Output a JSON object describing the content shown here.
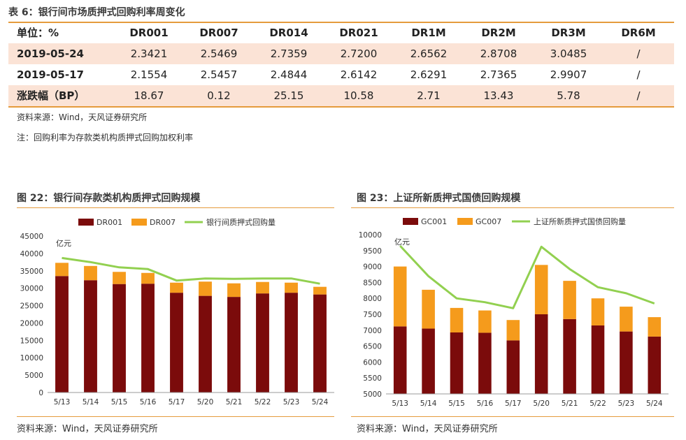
{
  "table": {
    "caption": "表 6：银行间市场质押式回购利率周变化",
    "headers": [
      "单位：%",
      "DR001",
      "DR007",
      "DR014",
      "DR021",
      "DR1M",
      "DR2M",
      "DR3M",
      "DR6M"
    ],
    "rows": [
      {
        "label": "2019-05-24",
        "values": [
          "2.3421",
          "2.5469",
          "2.7359",
          "2.7200",
          "2.6562",
          "2.8708",
          "3.0485",
          "/"
        ]
      },
      {
        "label": "2019-05-17",
        "values": [
          "2.1554",
          "2.5457",
          "2.4844",
          "2.6142",
          "2.6291",
          "2.7365",
          "2.9907",
          "/"
        ]
      },
      {
        "label": "涨跌幅（BP）",
        "values": [
          "18.67",
          "0.12",
          "25.15",
          "10.58",
          "2.71",
          "13.43",
          "5.78",
          "/"
        ]
      }
    ],
    "source": "资料来源：Wind，天风证券研究所",
    "note": "注：回购利率为存款类机构质押式回购加权利率"
  },
  "colors": {
    "dark_red": "#7b0b0b",
    "orange": "#f59b1c",
    "green": "#92d050",
    "rule": "#e59b3c",
    "shade": "#fbe3d6"
  },
  "chart_data": [
    {
      "type": "bar",
      "caption": "图 22：银行间存款类机构质押式回购规模",
      "unit": "亿元",
      "categories": [
        "5/13",
        "5/14",
        "5/15",
        "5/16",
        "5/17",
        "5/20",
        "5/21",
        "5/22",
        "5/23",
        "5/24"
      ],
      "series": [
        {
          "name": "DR001",
          "kind": "stacked-bar",
          "values": [
            33500,
            32300,
            31200,
            31300,
            28700,
            27800,
            27500,
            28500,
            28700,
            28200
          ]
        },
        {
          "name": "DR007",
          "kind": "stacked-bar",
          "values": [
            3800,
            4100,
            3500,
            3100,
            2900,
            4100,
            3900,
            3300,
            2900,
            2200
          ]
        },
        {
          "name": "银行间质押式回购量",
          "kind": "line",
          "values": [
            38700,
            37500,
            36000,
            35500,
            32200,
            32800,
            32700,
            32800,
            32800,
            31300
          ]
        }
      ],
      "yticks": [
        "0",
        "5000",
        "10000",
        "15000",
        "20000",
        "25000",
        "30000",
        "35000",
        "40000",
        "45000"
      ],
      "ylim": [
        0,
        45000
      ],
      "legend": "top",
      "source": "资料来源：Wind，天风证券研究所"
    },
    {
      "type": "bar",
      "caption": "图 23：上证所新质押式国债回购规模",
      "unit": "亿元",
      "categories": [
        "5/13",
        "5/14",
        "5/15",
        "5/16",
        "5/17",
        "5/20",
        "5/21",
        "5/22",
        "5/23",
        "5/24"
      ],
      "series": [
        {
          "name": "GC001",
          "kind": "stacked-bar",
          "values": [
            7120,
            7050,
            6930,
            6920,
            6680,
            7500,
            7350,
            7150,
            6960,
            6800
          ]
        },
        {
          "name": "GC007",
          "kind": "stacked-bar",
          "values": [
            1880,
            1220,
            770,
            700,
            640,
            1550,
            1200,
            850,
            780,
            610
          ]
        },
        {
          "name": "上证所新质押式国债回购量",
          "kind": "line",
          "values": [
            9650,
            8700,
            8000,
            7880,
            7690,
            9620,
            8920,
            8350,
            8160,
            7840
          ]
        }
      ],
      "yticks": [
        "5000",
        "5500",
        "6000",
        "6500",
        "7000",
        "7500",
        "8000",
        "8500",
        "9000",
        "9500",
        "10000"
      ],
      "ylim": [
        5000,
        10000
      ],
      "legend": "top",
      "source": "资料来源：Wind，天风证券研究所"
    }
  ]
}
